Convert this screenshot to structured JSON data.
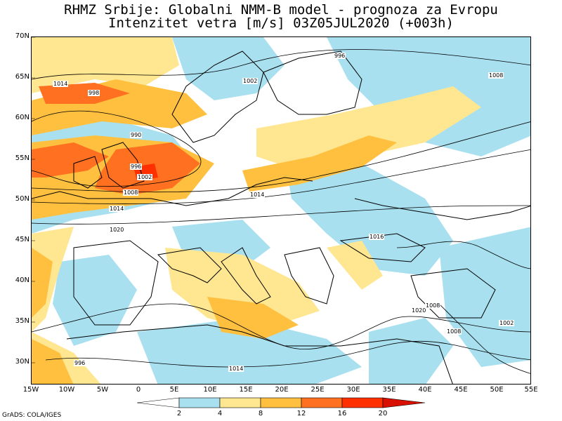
{
  "title_line1": "RHMZ Srbije: Globalni NMM-B model - prognoza za Evropu",
  "title_line2": "Intenzitet vetra [m/s] 03Z05JUL2020 (+003h)",
  "credit": "GrADS: COLA/IGES",
  "lat_labels": [
    "70N",
    "65N",
    "60N",
    "55N",
    "50N",
    "45N",
    "40N",
    "35N",
    "30N"
  ],
  "lon_labels": [
    "15W",
    "10W",
    "5W",
    "0",
    "5E",
    "10E",
    "15E",
    "20E",
    "25E",
    "30E",
    "35E",
    "40E",
    "45E",
    "50E",
    "55E"
  ],
  "colorbar": {
    "labels": [
      "2",
      "4",
      "8",
      "12",
      "16",
      "20"
    ],
    "colors": [
      "#ffffff",
      "#a8e0f0",
      "#ffe690",
      "#ffc040",
      "#ff7020",
      "#ff3000",
      "#d81000"
    ]
  },
  "colors": {
    "land": "#ffffff",
    "calm": "#a8e0f0",
    "moderate": "#ffe690",
    "fresh": "#ffc040",
    "strong": "#ff7020",
    "gale": "#ff3000",
    "coast": "#000000"
  },
  "isobar_labels": [
    "996",
    "1002",
    "1008",
    "998",
    "990",
    "996",
    "1002",
    "1008",
    "1014",
    "1014",
    "1020",
    "1016",
    "1020",
    "1008",
    "1002",
    "1008",
    "996",
    "1014",
    "1014"
  ]
}
